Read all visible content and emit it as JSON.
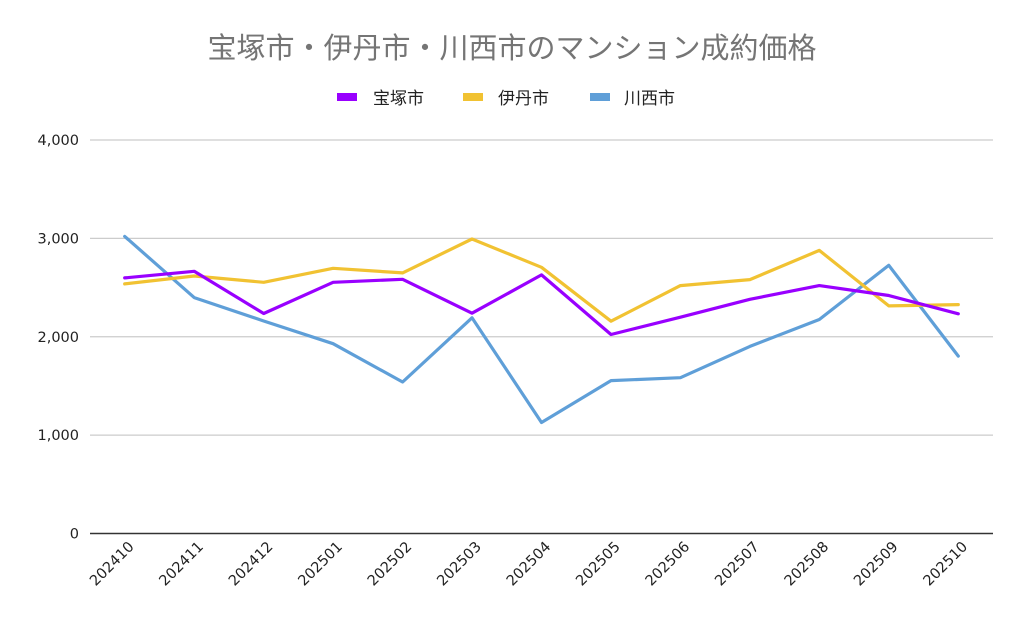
{
  "chart_data": {
    "type": "line",
    "title": "宝塚市・伊丹市・川西市のマンション成約価格",
    "xlabel": "",
    "ylabel": "",
    "ylim": [
      0,
      4000
    ],
    "yticks": [
      0,
      1000,
      2000,
      3000,
      4000
    ],
    "ytick_labels": [
      "0",
      "1,000",
      "2,000",
      "3,000",
      "4,000"
    ],
    "grid": true,
    "legend_position": "top-center",
    "categories": [
      "202410",
      "202411",
      "202412",
      "202501",
      "202502",
      "202503",
      "202504",
      "202505",
      "202506",
      "202507",
      "202508",
      "202509",
      "202510"
    ],
    "series": [
      {
        "name": "宝塚市",
        "color": "#9900ff",
        "values": [
          2598,
          2665,
          2236,
          2554,
          2584,
          2239,
          2629,
          2023,
          2199,
          2381,
          2520,
          2419,
          2233
        ]
      },
      {
        "name": "伊丹市",
        "color": "#f1c232",
        "values": [
          2537,
          2618,
          2553,
          2696,
          2649,
          2994,
          2706,
          2158,
          2520,
          2581,
          2878,
          2314,
          2327
        ]
      },
      {
        "name": "川西市",
        "color": "#5f9fd8",
        "values": [
          3020,
          2398,
          2160,
          1929,
          1540,
          2193,
          1128,
          1554,
          1584,
          1902,
          2175,
          2726,
          1803
        ]
      }
    ]
  }
}
